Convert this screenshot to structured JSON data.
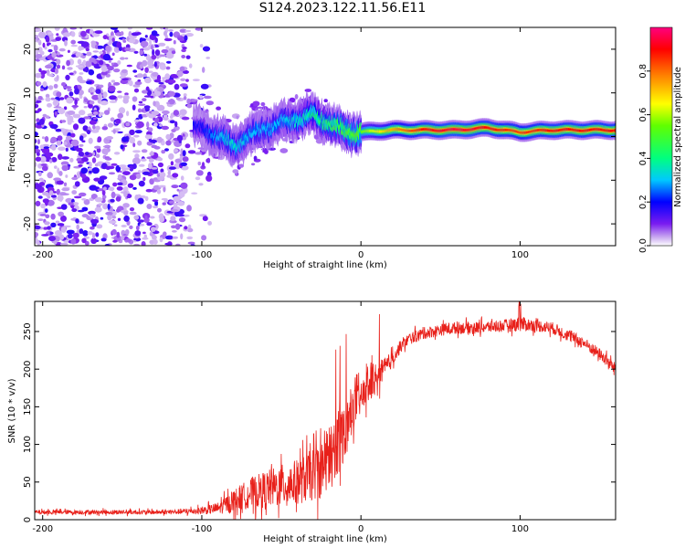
{
  "title": "S124.2023.122.11.56.E11",
  "chart_data": [
    {
      "type": "heatmap",
      "name": "spectrogram",
      "xlabel": "Height of straight line (km)",
      "ylabel": "Frequency (Hz)",
      "xlim": [
        -205,
        160
      ],
      "ylim": [
        -25,
        25
      ],
      "xticks": [
        "-200",
        "-100",
        "0",
        "100"
      ],
      "xtick_values": [
        -200,
        -100,
        0,
        100
      ],
      "yticks": [
        "-20",
        "-10",
        "0",
        "10",
        "20"
      ],
      "ytick_values": [
        -20,
        -10,
        0,
        10,
        20
      ],
      "colorbar": {
        "label": "Normalized spectral amplitude",
        "range": [
          0,
          1
        ],
        "ticks": [
          "0.0",
          "0.2",
          "0.4",
          "0.6",
          "0.8"
        ],
        "tick_values": [
          0.0,
          0.2,
          0.4,
          0.6,
          0.8
        ]
      },
      "ridge": {
        "description_free": true,
        "x": [
          -100,
          -90,
          -80,
          -70,
          -60,
          -50,
          -40,
          -30,
          -20,
          -10,
          0,
          20,
          40,
          60,
          80,
          100,
          120,
          140,
          160
        ],
        "freq": [
          2,
          0,
          -2,
          0,
          2,
          3,
          4,
          5,
          3,
          1,
          1,
          1.5,
          1.5,
          1.5,
          2,
          1,
          1.5,
          1.5,
          1.5
        ],
        "amplitude": [
          0.2,
          0.3,
          0.35,
          0.3,
          0.3,
          0.3,
          0.35,
          0.4,
          0.45,
          0.5,
          0.55,
          0.75,
          0.9,
          0.95,
          0.9,
          0.85,
          0.9,
          0.9,
          0.9
        ]
      }
    },
    {
      "type": "line",
      "name": "snr",
      "xlabel": "Height of straight line (km)",
      "ylabel": "SNR (10 * v/v)",
      "xlim": [
        -205,
        160
      ],
      "ylim": [
        0,
        290
      ],
      "xticks": [
        "-200",
        "-100",
        "0",
        "100"
      ],
      "xtick_values": [
        -200,
        -100,
        0,
        100
      ],
      "yticks": [
        "0",
        "50",
        "100",
        "150",
        "200",
        "250"
      ],
      "ytick_values": [
        0,
        50,
        100,
        150,
        200,
        250
      ],
      "color": "#e8201a",
      "series": [
        {
          "name": "SNR",
          "x": [
            -205,
            -180,
            -150,
            -120,
            -100,
            -90,
            -80,
            -70,
            -60,
            -50,
            -40,
            -30,
            -20,
            -10,
            -5,
            0,
            5,
            10,
            15,
            20,
            25,
            30,
            40,
            50,
            60,
            70,
            80,
            90,
            100,
            110,
            120,
            130,
            140,
            150,
            160
          ],
          "values": [
            10,
            10,
            10,
            10,
            12,
            15,
            25,
            35,
            40,
            45,
            50,
            60,
            80,
            120,
            150,
            160,
            180,
            190,
            200,
            215,
            230,
            240,
            248,
            252,
            255,
            255,
            256,
            258,
            260,
            258,
            255,
            245,
            235,
            220,
            200
          ],
          "noise": [
            3,
            3,
            3,
            3,
            5,
            8,
            15,
            20,
            25,
            28,
            30,
            35,
            45,
            40,
            30,
            20,
            25,
            20,
            15,
            10,
            8,
            8,
            8,
            8,
            8,
            8,
            8,
            8,
            10,
            8,
            8,
            8,
            8,
            8,
            8
          ]
        }
      ]
    }
  ]
}
